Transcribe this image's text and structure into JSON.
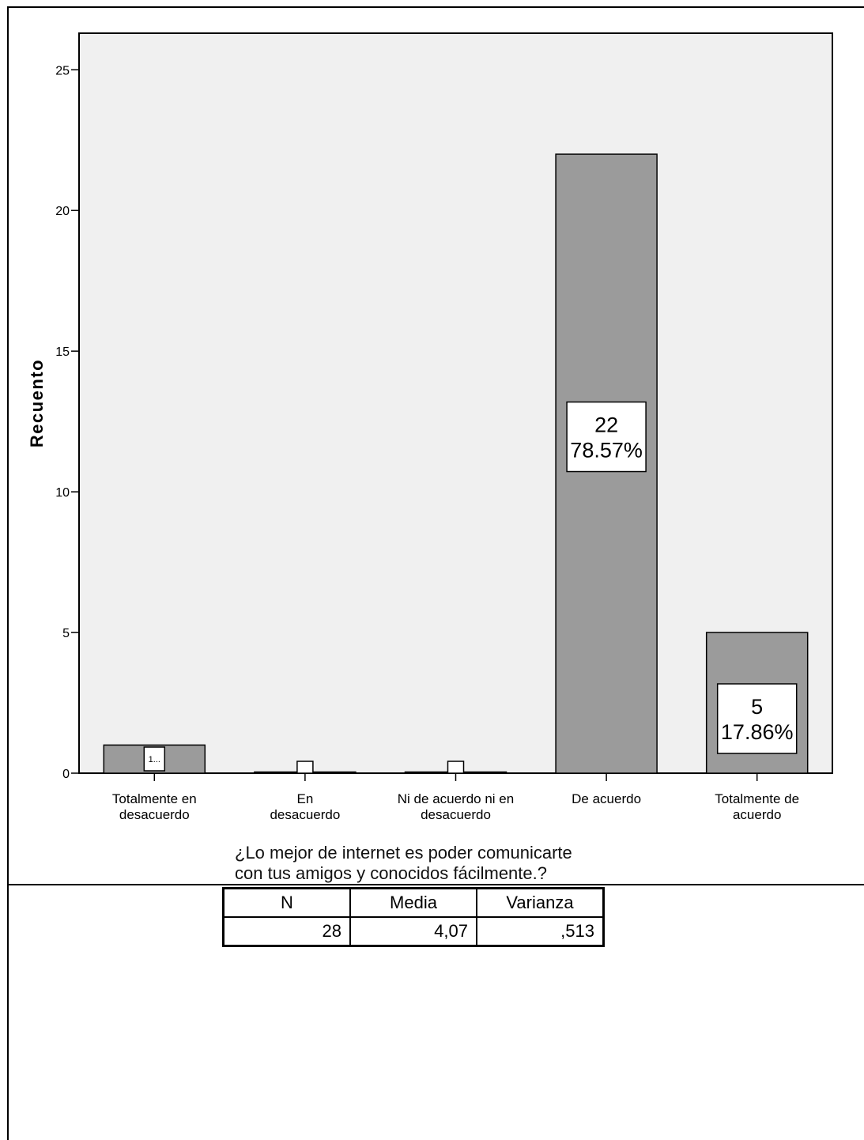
{
  "chart_data": {
    "type": "bar",
    "categories": [
      "Totalmente en desacuerdo",
      "En desacuerdo",
      "Ni de acuerdo ni en desacuerdo",
      "De acuerdo",
      "Totalmente de acuerdo"
    ],
    "values": [
      1,
      0,
      0,
      22,
      5
    ],
    "data_labels": [
      [
        "1..."
      ],
      [
        ""
      ],
      [
        ""
      ],
      [
        "22",
        "78.57%"
      ],
      [
        "5",
        "17.86%"
      ]
    ],
    "ylabel": "Recuento",
    "xlabel": "",
    "ylim": [
      0,
      26.3
    ],
    "yticks": [
      0,
      5,
      10,
      15,
      20,
      25
    ],
    "grid": false,
    "colors": {
      "bar": "#9b9b9b",
      "plot_bg": "#f0f0f0",
      "label_box": "#ffffff"
    }
  },
  "stats": {
    "title_line1": "¿Lo mejor de internet es poder comunicarte",
    "title_line2": "con tus amigos y conocidos fácilmente.?",
    "headers": [
      "N",
      "Media",
      "Varianza"
    ],
    "values": [
      "28",
      "4,07",
      ",513"
    ]
  }
}
